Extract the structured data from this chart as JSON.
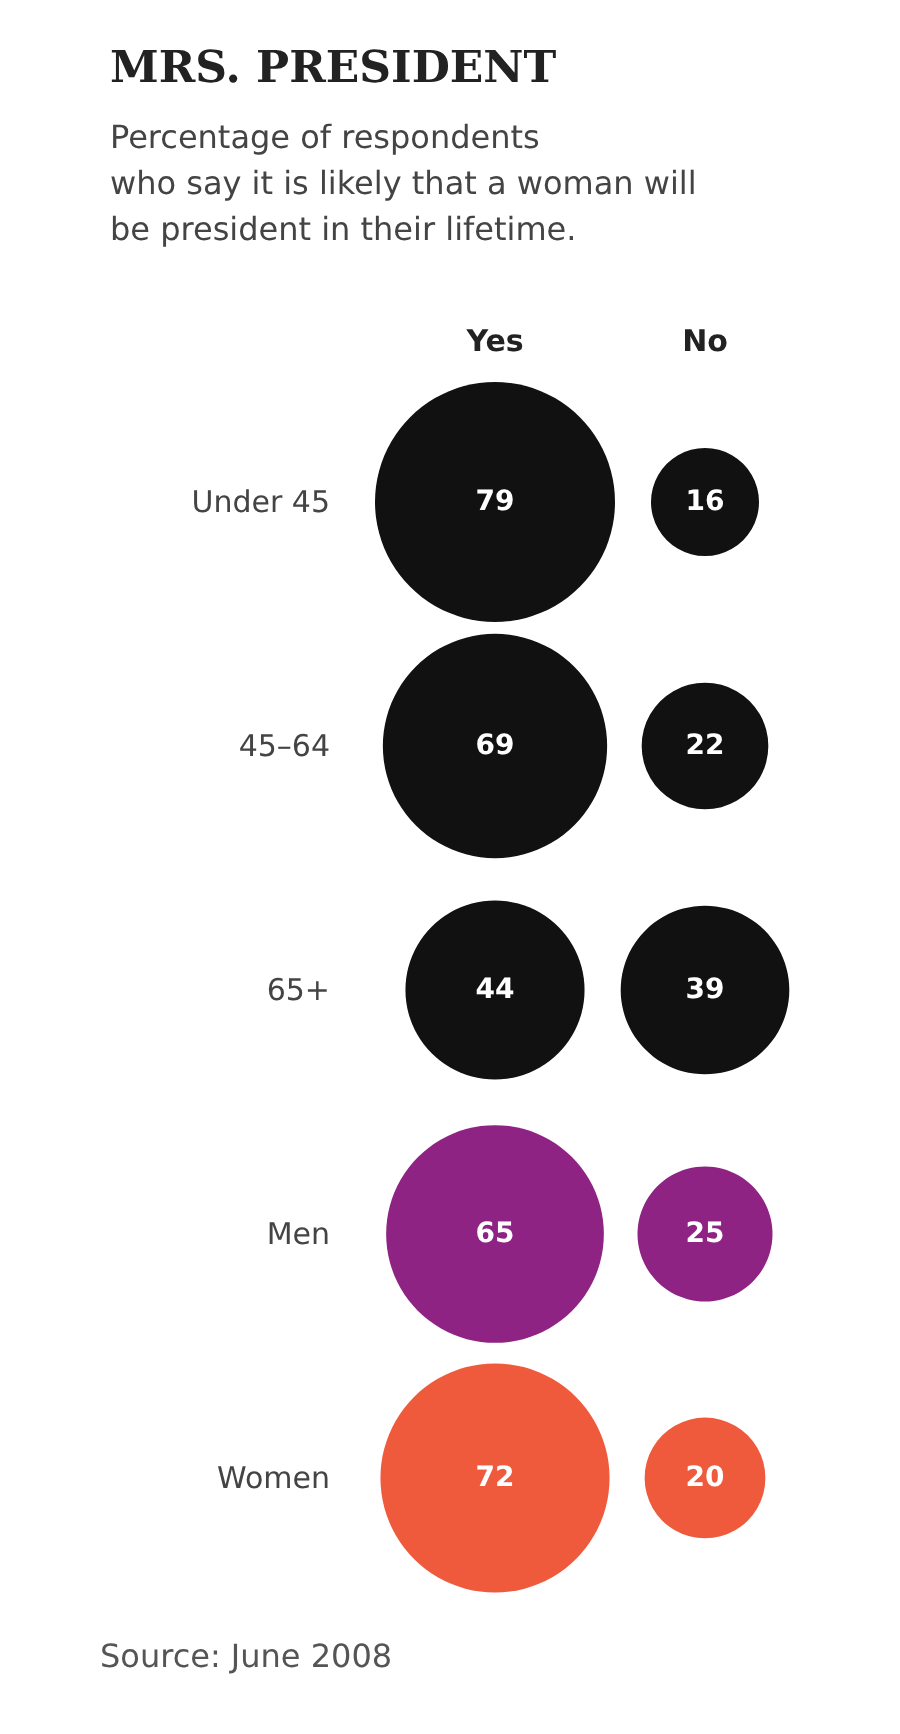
{
  "chart_data": {
    "type": "other",
    "title": "MRS. PRESIDENT",
    "subtitle": "Percentage of respondents\nwho say it is likely that a woman will\nbe president in their lifetime.",
    "categories": [
      "Yes",
      "No"
    ],
    "series": [
      {
        "name": "Under 45",
        "color": "#111111",
        "values": [
          79,
          16
        ]
      },
      {
        "name": "45–64",
        "color": "#111111",
        "values": [
          69,
          22
        ]
      },
      {
        "name": "65+",
        "color": "#111111",
        "values": [
          44,
          39
        ]
      },
      {
        "name": "Men",
        "color": "#8e2383",
        "values": [
          65,
          25
        ]
      },
      {
        "name": "Women",
        "color": "#f05a3c",
        "values": [
          72,
          20
        ]
      }
    ],
    "data_labels": true,
    "annotations": [
      "Source: June 2008"
    ]
  }
}
